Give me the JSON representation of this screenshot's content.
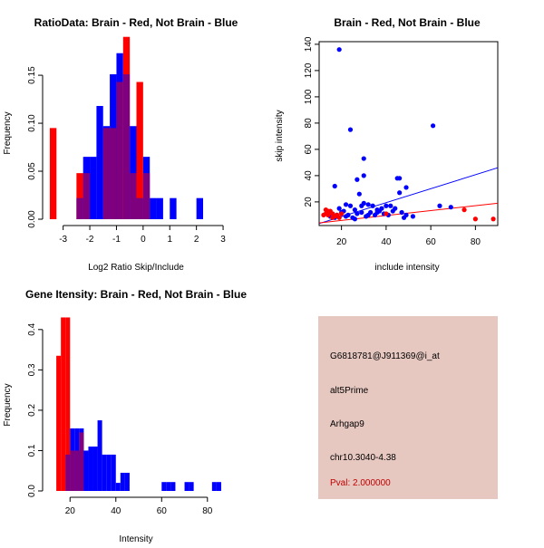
{
  "colors": {
    "red": "#ff0000",
    "blue": "#0000ff",
    "purple": "#7f007f",
    "panel_bg": "#e7c8c1",
    "pval": "#c00000"
  },
  "chart_data": [
    {
      "id": "ratio",
      "type": "bar",
      "title": "RatioData: Brain - Red, Not Brain - Blue",
      "xlabel": "Log2 Ratio Skip/Include",
      "ylabel": "Frequency",
      "xlim": [
        -3.6,
        3.1
      ],
      "ylim": [
        0,
        0.185
      ],
      "xticks": [
        -3,
        -2,
        -1,
        0,
        1,
        2,
        3
      ],
      "yticks": [
        0.0,
        0.05,
        0.1,
        0.15
      ],
      "ytick_labels": [
        "0.00",
        "0.05",
        "0.10",
        "0.15"
      ],
      "bin_edges": [
        -3.5,
        -3.25,
        -3.0,
        -2.75,
        -2.5,
        -2.25,
        -2.0,
        -1.75,
        -1.5,
        -1.25,
        -1.0,
        -0.75,
        -0.5,
        -0.25,
        0.0,
        0.25,
        0.5,
        0.75,
        1.0,
        1.25,
        1.5,
        1.75,
        2.0,
        2.25,
        2.5,
        2.75,
        3.0
      ],
      "series": [
        {
          "name": "Not Brain",
          "color": "blue",
          "values": [
            0,
            0,
            0,
            0,
            0.022,
            0.065,
            0.065,
            0.118,
            0.097,
            0.151,
            0.173,
            0.151,
            0.097,
            0.022,
            0.065,
            0.022,
            0.022,
            0,
            0.022,
            0,
            0,
            0,
            0.022,
            0,
            0,
            0
          ]
        },
        {
          "name": "Brain",
          "color": "red",
          "values": [
            0.095,
            0,
            0,
            0,
            0.048,
            0.048,
            0,
            0,
            0.095,
            0.095,
            0.143,
            0.19,
            0.048,
            0.143,
            0.048,
            0,
            0,
            0,
            0,
            0,
            0,
            0,
            0,
            0,
            0,
            0
          ]
        }
      ]
    },
    {
      "id": "scatter",
      "type": "scatter",
      "title": "Brain - Red, Not Brain - Blue",
      "xlabel": "include intensity",
      "ylabel": "skip intensity",
      "xlim": [
        10,
        90
      ],
      "ylim": [
        2,
        142
      ],
      "xticks": [
        20,
        40,
        60,
        80
      ],
      "yticks": [
        20,
        40,
        60,
        80,
        100,
        120,
        140
      ],
      "series": [
        {
          "name": "Not Brain",
          "color": "blue",
          "points": [
            [
              19,
              136
            ],
            [
              24,
              75
            ],
            [
              61,
              78
            ],
            [
              30,
              53
            ],
            [
              30,
              40
            ],
            [
              27,
              37
            ],
            [
              45,
              38
            ],
            [
              46,
              38
            ],
            [
              17,
              32
            ],
            [
              49,
              31
            ],
            [
              28,
              26
            ],
            [
              46,
              27
            ],
            [
              64,
              17
            ],
            [
              69,
              16
            ],
            [
              22,
              18
            ],
            [
              24,
              17
            ],
            [
              19,
              15
            ],
            [
              21,
              13
            ],
            [
              26,
              14
            ],
            [
              29,
              17
            ],
            [
              30,
              19
            ],
            [
              32,
              18
            ],
            [
              34,
              17
            ],
            [
              36,
              14
            ],
            [
              38,
              15
            ],
            [
              40,
              17
            ],
            [
              42,
              17
            ],
            [
              44,
              15
            ],
            [
              16,
              11
            ],
            [
              18,
              10
            ],
            [
              20,
              12
            ],
            [
              23,
              10
            ],
            [
              25,
              8
            ],
            [
              27,
              11
            ],
            [
              29,
              12
            ],
            [
              31,
              9
            ],
            [
              33,
              12
            ],
            [
              35,
              10
            ],
            [
              37,
              13
            ],
            [
              39,
              11
            ],
            [
              41,
              10
            ],
            [
              47,
              12
            ],
            [
              49,
              10
            ],
            [
              52,
              9
            ],
            [
              15,
              9
            ],
            [
              17,
              8
            ],
            [
              22,
              9
            ],
            [
              26,
              7
            ],
            [
              32,
              10
            ],
            [
              36,
              12
            ],
            [
              43,
              13
            ],
            [
              48,
              8
            ]
          ]
        },
        {
          "name": "Brain",
          "color": "red",
          "points": [
            [
              12,
              10
            ],
            [
              13,
              14
            ],
            [
              14,
              13
            ],
            [
              15,
              12
            ],
            [
              16,
              11
            ],
            [
              17,
              9
            ],
            [
              13,
              11
            ],
            [
              14,
              10
            ],
            [
              18,
              10
            ],
            [
              19,
              8
            ],
            [
              20,
              11
            ],
            [
              15,
              13
            ],
            [
              16,
              8
            ],
            [
              40,
              11
            ],
            [
              75,
              14
            ],
            [
              80,
              7
            ],
            [
              88,
              7
            ]
          ]
        }
      ],
      "fit_lines": [
        {
          "color": "blue",
          "from": [
            10,
            3.5
          ],
          "to": [
            90,
            46
          ]
        },
        {
          "color": "red",
          "from": [
            10,
            4
          ],
          "to": [
            90,
            19
          ]
        }
      ]
    },
    {
      "id": "intensity",
      "type": "bar",
      "title": "Gene Itensity: Brain - Red, Not Brain - Blue",
      "xlabel": "Intensity",
      "ylabel": "Frequency",
      "xlim": [
        10,
        88
      ],
      "ylim": [
        0,
        0.44
      ],
      "xticks": [
        20,
        40,
        60,
        80
      ],
      "yticks": [
        0.0,
        0.1,
        0.2,
        0.3,
        0.4
      ],
      "ytick_labels": [
        "0.0",
        "0.1",
        "0.2",
        "0.3",
        "0.4"
      ],
      "bin_edges": [
        14,
        16,
        18,
        20,
        22,
        24,
        26,
        28,
        30,
        32,
        34,
        36,
        38,
        40,
        42,
        44,
        46,
        48,
        50,
        52,
        54,
        56,
        58,
        60,
        62,
        64,
        66,
        68,
        70,
        72,
        74,
        76,
        78,
        80,
        82,
        84,
        86
      ],
      "series": [
        {
          "name": "Not Brain",
          "color": "blue",
          "values": [
            0,
            0,
            0.09,
            0.155,
            0.155,
            0.155,
            0.1,
            0.11,
            0.11,
            0.175,
            0.09,
            0.09,
            0.09,
            0.02,
            0.045,
            0.045,
            0,
            0,
            0,
            0,
            0,
            0,
            0,
            0.022,
            0.022,
            0.022,
            0,
            0,
            0.022,
            0.022,
            0,
            0,
            0,
            0,
            0.022,
            0.022
          ]
        },
        {
          "name": "Brain",
          "color": "red",
          "values": [
            0.335,
            0.43,
            0.43,
            0.1,
            0.1,
            0.145,
            0,
            0,
            0,
            0,
            0,
            0,
            0,
            0,
            0,
            0,
            0,
            0,
            0,
            0,
            0,
            0,
            0,
            0,
            0,
            0,
            0,
            0,
            0,
            0,
            0,
            0,
            0,
            0,
            0,
            0
          ]
        }
      ]
    }
  ],
  "info": {
    "probe": "G6818781@J911369@i_at",
    "event": "alt5Prime",
    "gene": "Arhgap9",
    "location": "chr10.3040-4.38",
    "pval": "Pval: 2.000000"
  }
}
